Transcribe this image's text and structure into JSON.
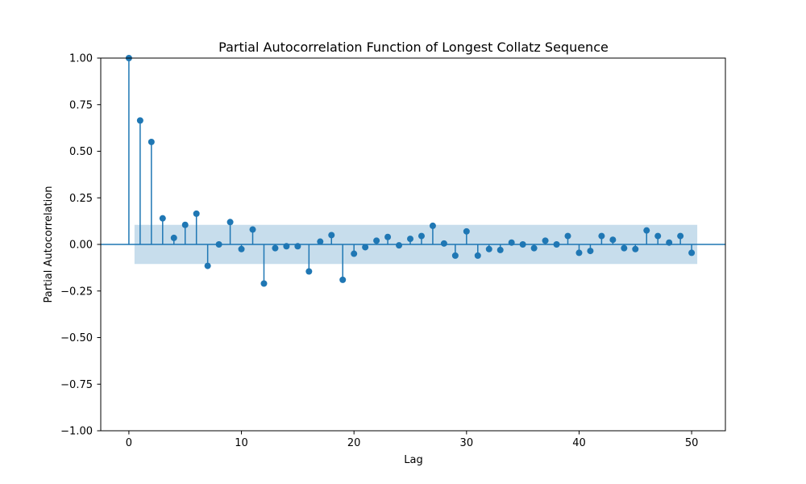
{
  "chart_data": {
    "type": "stem",
    "title": "Partial Autocorrelation Function of Longest Collatz Sequence",
    "xlabel": "Lag",
    "ylabel": "Partial Autocorrelation",
    "xlim": [
      -2.5,
      53
    ],
    "ylim": [
      -1.0,
      1.0
    ],
    "xticks": [
      0,
      10,
      20,
      30,
      40,
      50
    ],
    "xtick_labels": [
      "0",
      "10",
      "20",
      "30",
      "40",
      "50"
    ],
    "yticks": [
      -1.0,
      -0.75,
      -0.5,
      -0.25,
      0.0,
      0.25,
      0.5,
      0.75,
      1.0
    ],
    "ytick_labels": [
      "−1.00",
      "−0.75",
      "−0.50",
      "−0.25",
      "0.00",
      "0.25",
      "0.50",
      "0.75",
      "1.00"
    ],
    "grid": false,
    "colors": {
      "stem": "#1f77b4",
      "confidence_band": "#1f77b4",
      "axes": "#000000"
    },
    "confidence_interval": {
      "x_start": 0.5,
      "x_end": 50.5,
      "lower": -0.105,
      "upper": 0.105
    },
    "lags": [
      0,
      1,
      2,
      3,
      4,
      5,
      6,
      7,
      8,
      9,
      10,
      11,
      12,
      13,
      14,
      15,
      16,
      17,
      18,
      19,
      20,
      21,
      22,
      23,
      24,
      25,
      26,
      27,
      28,
      29,
      30,
      31,
      32,
      33,
      34,
      35,
      36,
      37,
      38,
      39,
      40,
      41,
      42,
      43,
      44,
      45,
      46,
      47,
      48,
      49,
      50
    ],
    "values": [
      1.0,
      0.665,
      0.55,
      0.14,
      0.035,
      0.105,
      0.165,
      -0.115,
      0.0,
      0.12,
      -0.025,
      0.08,
      -0.21,
      -0.02,
      -0.01,
      -0.01,
      -0.145,
      0.015,
      0.05,
      -0.19,
      -0.05,
      -0.015,
      0.02,
      0.04,
      -0.005,
      0.03,
      0.045,
      0.1,
      0.005,
      -0.06,
      0.07,
      -0.06,
      -0.025,
      -0.03,
      0.01,
      0.0,
      -0.02,
      0.02,
      0.0,
      0.045,
      -0.045,
      -0.035,
      0.045,
      0.025,
      -0.02,
      -0.025,
      0.075,
      0.045,
      0.01,
      0.045,
      -0.045
    ]
  }
}
